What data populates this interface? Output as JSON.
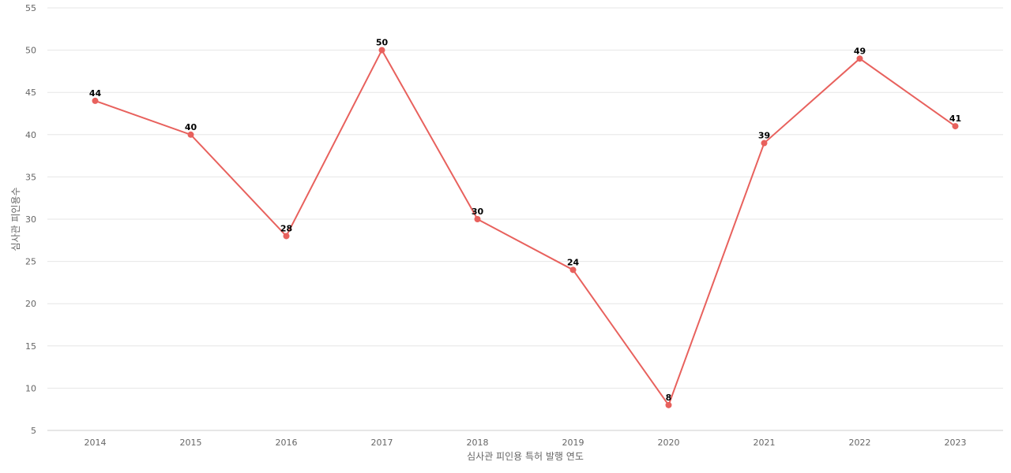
{
  "chart_data": {
    "type": "line",
    "categories": [
      "2014",
      "2015",
      "2016",
      "2017",
      "2018",
      "2019",
      "2020",
      "2021",
      "2022",
      "2023"
    ],
    "series": [
      {
        "values": [
          44,
          40,
          28,
          50,
          30,
          24,
          8,
          39,
          49,
          41
        ]
      }
    ],
    "xlabel": "심사관 피인용 특허 발행 연도",
    "ylabel": "심사관 피인용수",
    "ylim": [
      5,
      55
    ],
    "yticks": [
      5,
      10,
      15,
      20,
      25,
      30,
      35,
      40,
      45,
      50,
      55
    ],
    "grid": true,
    "data_labels": true,
    "colors": {
      "line": "#e8615d",
      "point": "#e8615d"
    }
  }
}
